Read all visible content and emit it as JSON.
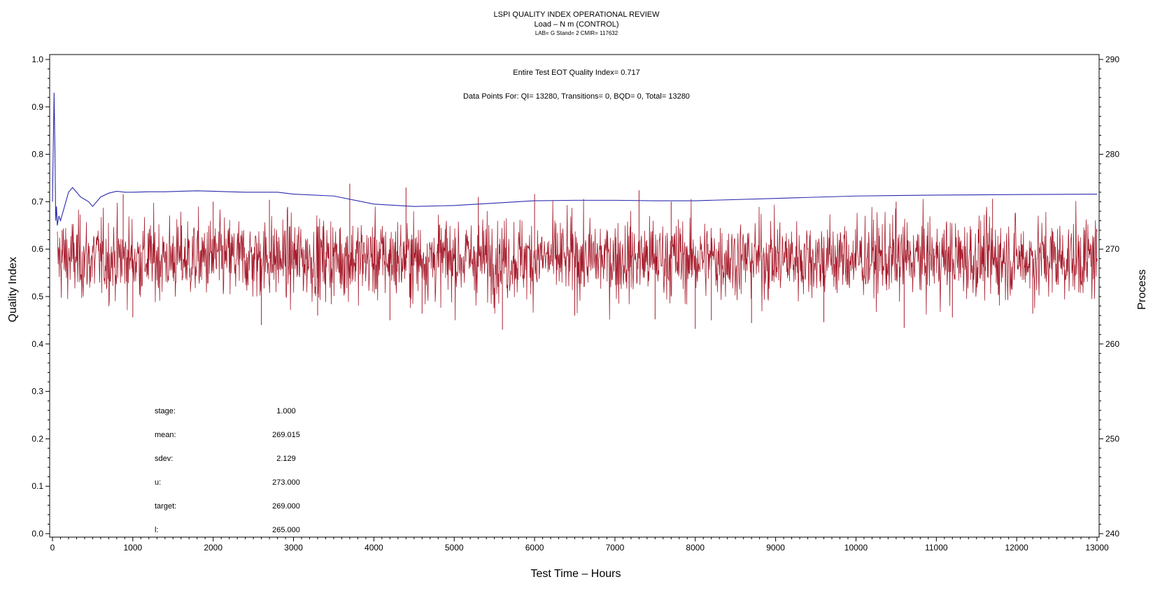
{
  "chart_data": {
    "type": "line",
    "title": "LSPI QUALITY INDEX OPERATIONAL REVIEW",
    "subtitle": "Load – N m (CONTROL)",
    "subtitle2": "LAB= G Stand= 2 CMIR= 117632",
    "annotation1": "Entire Test EOT Quality Index=   0.717",
    "annotation2": "Data Points For: QI= 13280, Transitions=      0, BQD=      0, Total= 13280",
    "xlabel": "Test Time – Hours",
    "ylabel": "Quality Index",
    "y2label": "Process",
    "xlim": [
      0,
      13000
    ],
    "ylim": [
      0.0,
      1.0
    ],
    "y2lim": [
      240,
      290
    ],
    "x_ticks": [
      "0",
      "1000",
      "2000",
      "3000",
      "4000",
      "5000",
      "6000",
      "7000",
      "8000",
      "9000",
      "10000",
      "11000",
      "12000",
      "13000"
    ],
    "y_ticks": [
      "0.0",
      "0.1",
      "0.2",
      "0.3",
      "0.4",
      "0.5",
      "0.6",
      "0.7",
      "0.8",
      "0.9",
      "1.0"
    ],
    "y2_ticks": [
      "240",
      "250",
      "260",
      "270",
      "280",
      "290"
    ],
    "grid": false,
    "series": [
      {
        "axis": "left",
        "color": "#2b2bb0",
        "x": [
          0,
          20,
          30,
          40,
          50,
          60,
          80,
          100,
          150,
          200,
          250,
          300,
          350,
          400,
          450,
          500,
          600,
          700,
          800,
          900,
          1000,
          1200,
          1400,
          1600,
          1800,
          2000,
          2200,
          2400,
          2600,
          2800,
          3000,
          3500,
          4000,
          4500,
          5000,
          5500,
          6000,
          6500,
          7000,
          7500,
          8000,
          9000,
          10000,
          11000,
          12000,
          13000
        ],
        "y": [
          0.7,
          0.93,
          0.82,
          0.66,
          0.69,
          0.65,
          0.67,
          0.66,
          0.69,
          0.72,
          0.73,
          0.72,
          0.71,
          0.705,
          0.7,
          0.69,
          0.71,
          0.718,
          0.722,
          0.72,
          0.72,
          0.721,
          0.721,
          0.722,
          0.723,
          0.722,
          0.721,
          0.72,
          0.72,
          0.72,
          0.716,
          0.712,
          0.695,
          0.69,
          0.692,
          0.697,
          0.702,
          0.703,
          0.703,
          0.702,
          0.702,
          0.707,
          0.712,
          0.714,
          0.715,
          0.716
        ]
      },
      {
        "axis": "right",
        "color": "#a61b2b",
        "mean": 269.015,
        "sdev": 2.129,
        "x": [
          120,
          880,
          1000,
          2000,
          2600,
          2700,
          3300,
          3700,
          4200,
          4400,
          4600,
          5300,
          5600,
          6000,
          6500,
          7300,
          7500,
          7700,
          8000,
          8200,
          8700,
          9600,
          10500,
          10600,
          11200,
          11700,
          12200,
          13000
        ],
        "y": [
          272.0,
          275.8,
          262.8,
          275.0,
          262.0,
          275.2,
          263.0,
          276.9,
          262.5,
          276.5,
          263.2,
          275.5,
          261.5,
          275.8,
          263.0,
          276.2,
          262.6,
          275.0,
          261.6,
          262.5,
          262.2,
          262.3,
          275.0,
          261.7,
          262.8,
          275.3,
          263.2,
          268.7
        ]
      }
    ],
    "stats": [
      {
        "label": "stage:",
        "value": "1.000"
      },
      {
        "label": "mean:",
        "value": "269.015"
      },
      {
        "label": "sdev:",
        "value": "2.129"
      },
      {
        "label": "u:",
        "value": "273.000"
      },
      {
        "label": "target:",
        "value": "269.000"
      },
      {
        "label": "l:",
        "value": "265.000"
      }
    ]
  }
}
